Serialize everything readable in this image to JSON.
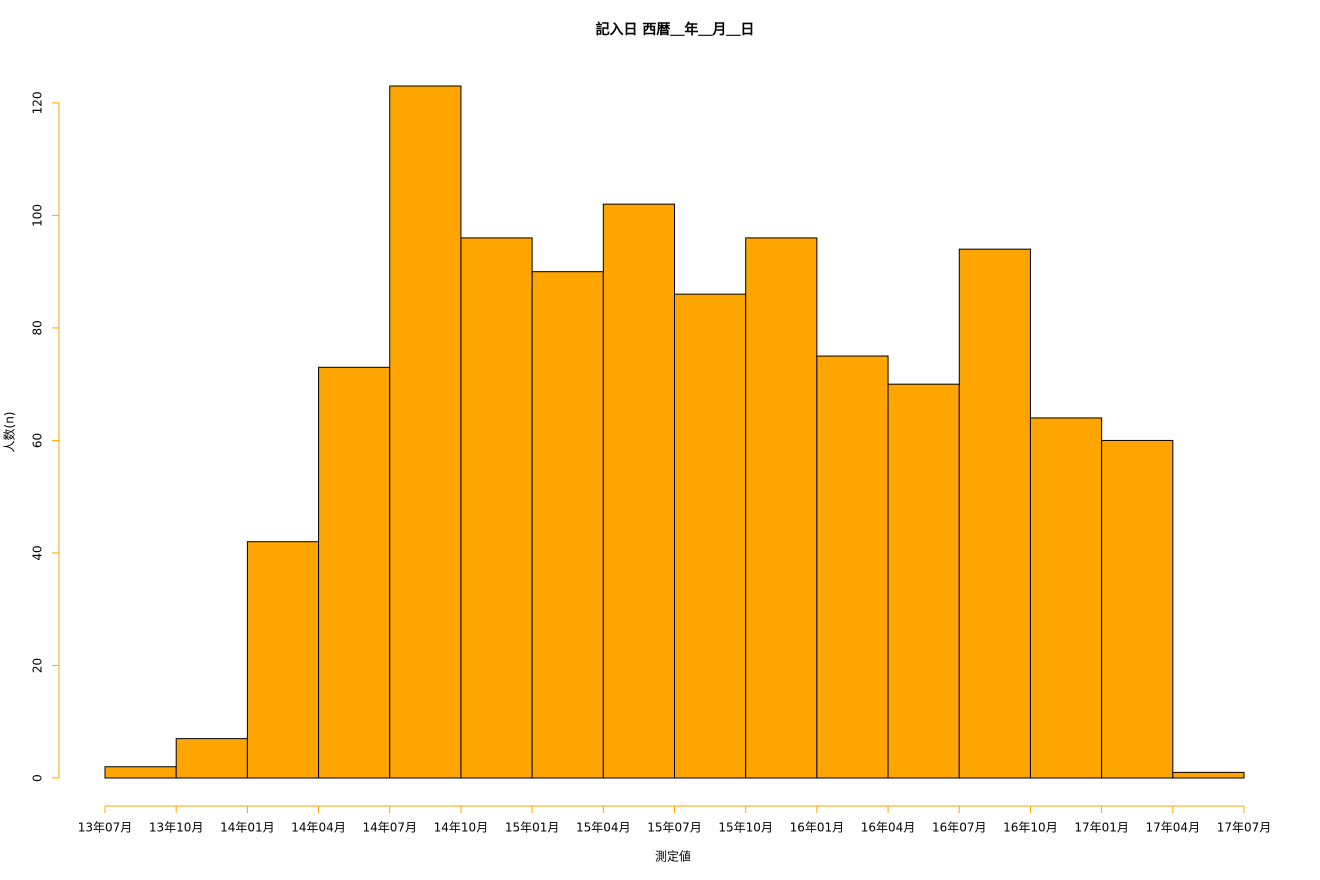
{
  "chart_data": {
    "type": "histogram",
    "title": "記入日 西暦＿年＿月＿日",
    "x_label": "測定値",
    "y_label": "人数(n)",
    "bins": [
      "13年07月",
      "13年10月",
      "14年01月",
      "14年04月",
      "14年07月",
      "14年10月",
      "15年01月",
      "15年04月",
      "15年07月",
      "15年10月",
      "16年01月",
      "16年04月",
      "16年07月",
      "16年10月",
      "17年01月",
      "17年04月",
      "17年07月"
    ],
    "values": [
      2,
      7,
      42,
      73,
      123,
      96,
      90,
      102,
      86,
      96,
      75,
      70,
      94,
      64,
      60,
      1
    ],
    "color": "#FFA500",
    "axis_color": "#FFA500",
    "ylim": [
      0,
      123
    ],
    "yticks": [
      0,
      20,
      40,
      60,
      80,
      100,
      120
    ]
  }
}
